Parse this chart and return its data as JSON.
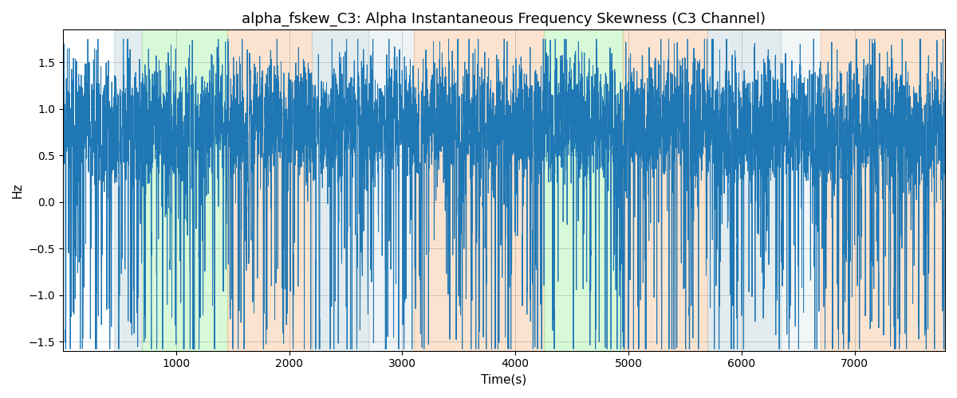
{
  "title": "alpha_fskew_C3: Alpha Instantaneous Frequency Skewness (C3 Channel)",
  "xlabel": "Time(s)",
  "ylabel": "Hz",
  "xlim": [
    0,
    7800
  ],
  "ylim": [
    -1.6,
    1.85
  ],
  "line_color": "#1f77b4",
  "line_width": 0.7,
  "bg_color": "#ffffff",
  "bands": [
    {
      "start": 450,
      "end": 700,
      "color": "#aec6cf",
      "alpha": 0.35
    },
    {
      "start": 700,
      "end": 1450,
      "color": "#90ee90",
      "alpha": 0.35
    },
    {
      "start": 1450,
      "end": 2200,
      "color": "#f4a460",
      "alpha": 0.3
    },
    {
      "start": 2200,
      "end": 2700,
      "color": "#aec6cf",
      "alpha": 0.35
    },
    {
      "start": 2700,
      "end": 3100,
      "color": "#aec6cf",
      "alpha": 0.2
    },
    {
      "start": 3100,
      "end": 4250,
      "color": "#f4a460",
      "alpha": 0.3
    },
    {
      "start": 4250,
      "end": 4950,
      "color": "#90ee90",
      "alpha": 0.35
    },
    {
      "start": 4950,
      "end": 5700,
      "color": "#f4a460",
      "alpha": 0.3
    },
    {
      "start": 5700,
      "end": 6350,
      "color": "#aec6cf",
      "alpha": 0.35
    },
    {
      "start": 6350,
      "end": 6700,
      "color": "#aec6cf",
      "alpha": 0.15
    },
    {
      "start": 6700,
      "end": 7800,
      "color": "#f4a460",
      "alpha": 0.3
    }
  ],
  "seed": 12345,
  "n_points": 7800,
  "yticks": [
    -1.5,
    -1.0,
    -0.5,
    0.0,
    0.5,
    1.0,
    1.5
  ],
  "xticks": [
    1000,
    2000,
    3000,
    4000,
    5000,
    6000,
    7000
  ]
}
